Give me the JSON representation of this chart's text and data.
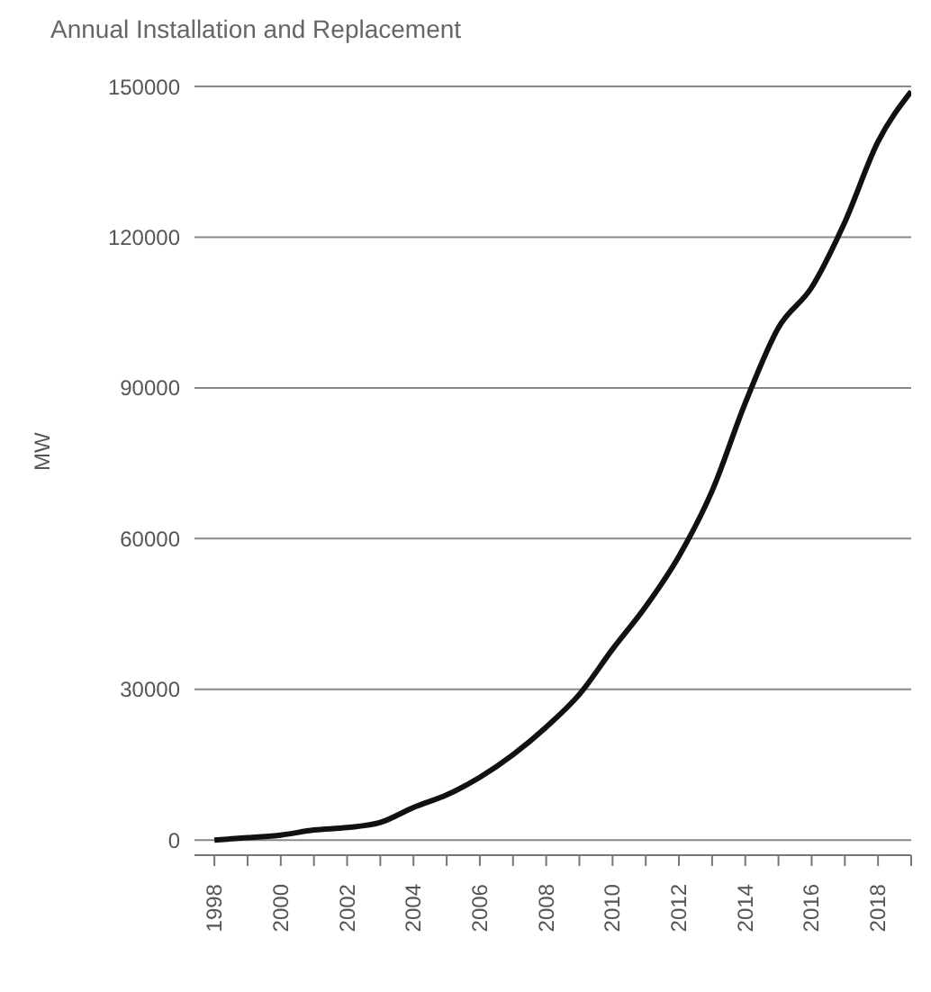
{
  "chart_data": {
    "type": "line",
    "title": "Annual Installation and Replacement",
    "ylabel": "MW",
    "x": [
      1998,
      1999,
      2000,
      2001,
      2002,
      2003,
      2004,
      2005,
      2006,
      2007,
      2008,
      2009,
      2010,
      2011,
      2012,
      2013,
      2014,
      2015,
      2016,
      2017,
      2018,
      2019
    ],
    "series": [
      {
        "color": "#111111",
        "values": [
          0,
          500,
          1000,
          2000,
          2500,
          3500,
          6500,
          9000,
          12500,
          17000,
          22500,
          29000,
          38000,
          46500,
          56500,
          69500,
          87000,
          102000,
          110000,
          123000,
          139000,
          149000
        ]
      }
    ],
    "xlim": [
      1997.4,
      2019
    ],
    "xticks": [
      {
        "value": 1998,
        "label": "1998"
      },
      {
        "value": 1999,
        "label": null
      },
      {
        "value": 2000,
        "label": "2000"
      },
      {
        "value": 2001,
        "label": null
      },
      {
        "value": 2002,
        "label": "2002"
      },
      {
        "value": 2003,
        "label": null
      },
      {
        "value": 2004,
        "label": "2004"
      },
      {
        "value": 2005,
        "label": null
      },
      {
        "value": 2006,
        "label": "2006"
      },
      {
        "value": 2007,
        "label": null
      },
      {
        "value": 2008,
        "label": "2008"
      },
      {
        "value": 2009,
        "label": null
      },
      {
        "value": 2010,
        "label": "2010"
      },
      {
        "value": 2011,
        "label": null
      },
      {
        "value": 2012,
        "label": "2012"
      },
      {
        "value": 2013,
        "label": null
      },
      {
        "value": 2014,
        "label": "2014"
      },
      {
        "value": 2015,
        "label": null
      },
      {
        "value": 2016,
        "label": "2016"
      },
      {
        "value": 2017,
        "label": null
      },
      {
        "value": 2018,
        "label": "2018"
      },
      {
        "value": 2019,
        "label": null
      }
    ],
    "ylim": [
      -3000,
      150000
    ],
    "yticks": [
      0,
      30000,
      60000,
      90000,
      120000,
      150000
    ],
    "grid": "y",
    "legend": false,
    "marker": "none",
    "line_style": "solid"
  }
}
